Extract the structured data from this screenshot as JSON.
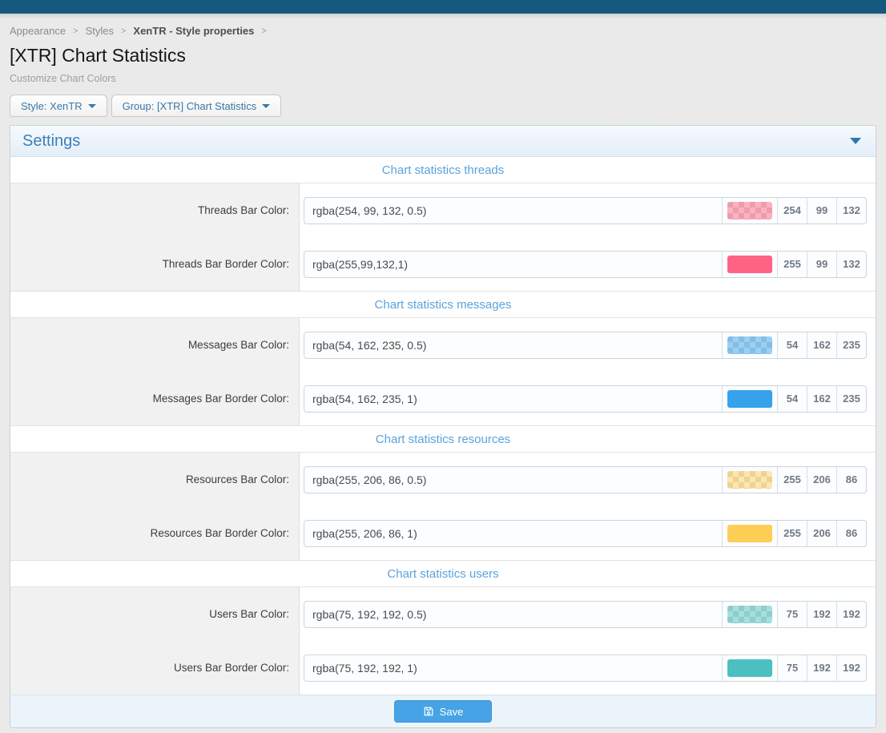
{
  "topbar_color": "#15597f",
  "breadcrumb": {
    "separator": ">",
    "items": [
      {
        "label": "Appearance"
      },
      {
        "label": "Styles"
      },
      {
        "label": "XenTR - Style properties"
      }
    ]
  },
  "page": {
    "title": "[XTR] Chart Statistics",
    "subtitle": "Customize Chart Colors"
  },
  "filters": [
    {
      "label": "Style: XenTR"
    },
    {
      "label": "Group: [XTR] Chart Statistics"
    }
  ],
  "panel": {
    "title": "Settings"
  },
  "sections": [
    {
      "title": "Chart statistics threads",
      "rows": [
        {
          "label": "Threads Bar Color:",
          "value": "rgba(254, 99, 132, 0.5)",
          "swatch": "rgba(254, 99, 132, 0.5)",
          "checker": true,
          "r": "254",
          "g": "99",
          "b": "132"
        },
        {
          "label": "Threads Bar Border Color:",
          "value": "rgba(255,99,132,1)",
          "swatch": "rgba(255, 99, 132, 1)",
          "checker": false,
          "r": "255",
          "g": "99",
          "b": "132"
        }
      ]
    },
    {
      "title": "Chart statistics messages",
      "rows": [
        {
          "label": "Messages Bar Color:",
          "value": "rgba(54, 162, 235, 0.5)",
          "swatch": "rgba(54, 162, 235, 0.5)",
          "checker": true,
          "r": "54",
          "g": "162",
          "b": "235"
        },
        {
          "label": "Messages Bar Border Color:",
          "value": "rgba(54, 162, 235, 1)",
          "swatch": "rgba(54, 162, 235, 1)",
          "checker": false,
          "r": "54",
          "g": "162",
          "b": "235"
        }
      ]
    },
    {
      "title": "Chart statistics resources",
      "rows": [
        {
          "label": "Resources Bar Color:",
          "value": "rgba(255, 206, 86, 0.5)",
          "swatch": "rgba(255, 206, 86, 0.5)",
          "checker": true,
          "r": "255",
          "g": "206",
          "b": "86"
        },
        {
          "label": "Resources Bar Border Color:",
          "value": "rgba(255, 206, 86, 1)",
          "swatch": "rgba(255, 206, 86, 1)",
          "checker": false,
          "r": "255",
          "g": "206",
          "b": "86"
        }
      ]
    },
    {
      "title": "Chart statistics users",
      "rows": [
        {
          "label": "Users Bar Color:",
          "value": "rgba(75, 192, 192, 0.5)",
          "swatch": "rgba(75, 192, 192, 0.5)",
          "checker": true,
          "r": "75",
          "g": "192",
          "b": "192"
        },
        {
          "label": "Users Bar Border Color:",
          "value": "rgba(75, 192, 192, 1)",
          "swatch": "rgba(75, 192, 192, 1)",
          "checker": false,
          "r": "75",
          "g": "192",
          "b": "192"
        }
      ]
    }
  ],
  "footer": {
    "save_label": "Save"
  }
}
